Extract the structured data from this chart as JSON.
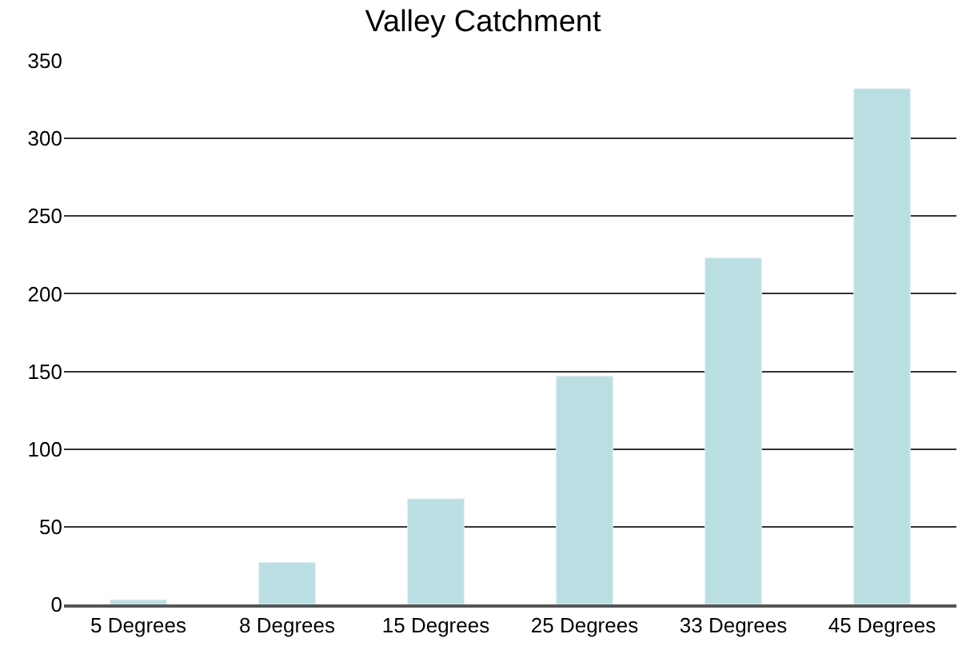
{
  "chart_data": {
    "type": "bar",
    "title": "Valley Catchment",
    "categories": [
      "5 Degrees",
      "8 Degrees",
      "15 Degrees",
      "25 Degrees",
      "33 Degrees",
      "45 Degrees"
    ],
    "values": [
      3,
      27,
      68,
      147,
      223,
      332
    ],
    "color": "#badfe2",
    "ylim": [
      0,
      350
    ],
    "yticks": [
      0,
      50,
      100,
      150,
      200,
      250,
      300,
      350
    ],
    "grid": "y",
    "legend": false
  }
}
